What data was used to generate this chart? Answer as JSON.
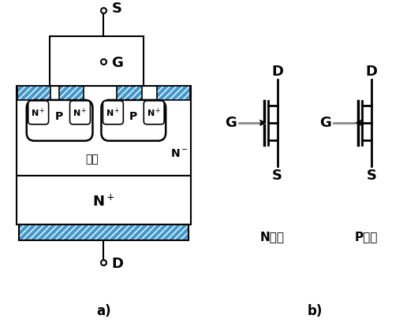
{
  "bg_color": "#ffffff",
  "line_color": "#000000",
  "blue_color": "#4499cc",
  "hatch_pattern": "////",
  "label_S": "S",
  "label_G": "G",
  "label_D": "D",
  "label_Nplus": "N⁺",
  "label_Nminus": "N⁻",
  "label_P": "P",
  "label_gou": "沟道",
  "label_a": "a)",
  "label_b": "b)",
  "label_Nchannel": "N沟道",
  "label_Pchannel": "P沟道",
  "gray_color": "#888888"
}
